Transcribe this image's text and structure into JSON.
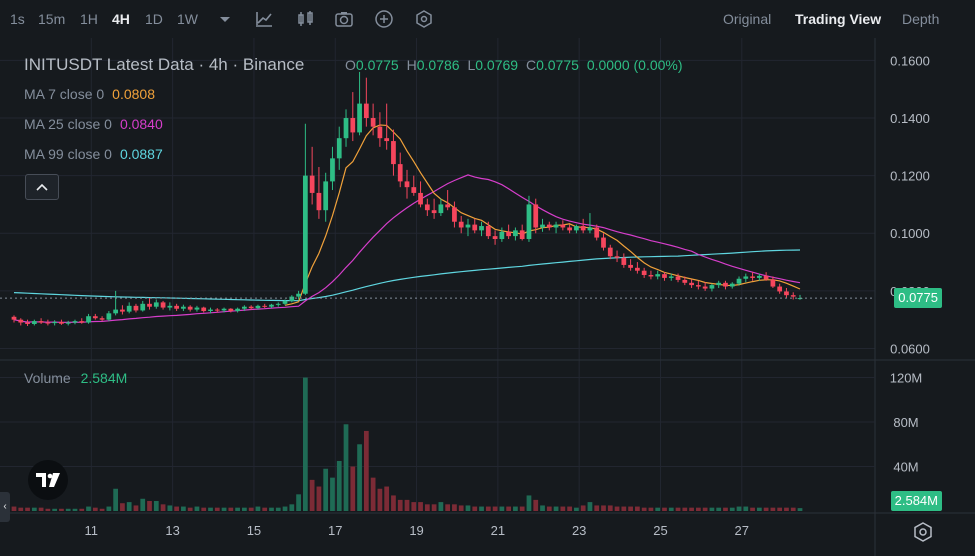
{
  "toolbar": {
    "timeframes": [
      "1s",
      "15m",
      "1H",
      "4H",
      "1D",
      "1W"
    ],
    "active_timeframe": "4H",
    "views": [
      "Original",
      "Trading View",
      "Depth"
    ],
    "active_view": "Trading View"
  },
  "legend": {
    "title": "INITUSDT Latest Data · 4h · Binance",
    "ohlc": [
      {
        "k": "O",
        "v": "0.0775"
      },
      {
        "k": "H",
        "v": "0.0786"
      },
      {
        "k": "L",
        "v": "0.0769"
      },
      {
        "k": "C",
        "v": "0.0775"
      }
    ],
    "change": "0.0000 (0.00%)",
    "ma": [
      {
        "label": "MA 7 close 0",
        "value": "0.0808",
        "color": "#f0a13a"
      },
      {
        "label": "MA 25 close 0",
        "value": "0.0840",
        "color": "#d63ecb"
      },
      {
        "label": "MA 99 close 0",
        "value": "0.0887",
        "color": "#5fd6e0"
      }
    ],
    "volume_label": "Volume",
    "volume_value": "2.584M"
  },
  "colors": {
    "up": "#2ebd85",
    "down": "#f6465d",
    "background": "#161a1e"
  },
  "chart_data": {
    "type": "candlestick",
    "symbol": "INITUSDT",
    "interval": "4h",
    "exchange": "Binance",
    "x_ticks": [
      "11",
      "13",
      "15",
      "17",
      "19",
      "21",
      "23",
      "25",
      "27"
    ],
    "price_ticks": [
      "0.1600",
      "0.1400",
      "0.1200",
      "0.1000",
      "0.0800",
      "0.0600"
    ],
    "price_range": [
      0.056,
      0.165
    ],
    "volume_ticks": [
      "120M",
      "80M",
      "40M"
    ],
    "volume_range": [
      0,
      125
    ],
    "last_price": "0.0775",
    "last_volume": "2.584M",
    "candles": [
      [
        0.071,
        0.0715,
        0.069,
        0.07,
        4
      ],
      [
        0.07,
        0.0705,
        0.068,
        0.069,
        3
      ],
      [
        0.069,
        0.07,
        0.0678,
        0.0685,
        3
      ],
      [
        0.0685,
        0.07,
        0.068,
        0.0695,
        3
      ],
      [
        0.0695,
        0.0705,
        0.0685,
        0.069,
        3
      ],
      [
        0.069,
        0.07,
        0.068,
        0.0688,
        2
      ],
      [
        0.0688,
        0.0698,
        0.068,
        0.0692,
        2
      ],
      [
        0.0692,
        0.07,
        0.0682,
        0.0686,
        2
      ],
      [
        0.0686,
        0.0696,
        0.068,
        0.069,
        2
      ],
      [
        0.069,
        0.07,
        0.0684,
        0.0695,
        2
      ],
      [
        0.0695,
        0.0705,
        0.0686,
        0.069,
        2
      ],
      [
        0.069,
        0.072,
        0.0686,
        0.0712,
        4
      ],
      [
        0.0712,
        0.072,
        0.07,
        0.0705,
        3
      ],
      [
        0.0705,
        0.0712,
        0.0695,
        0.07,
        2
      ],
      [
        0.07,
        0.073,
        0.0695,
        0.0722,
        4
      ],
      [
        0.0722,
        0.08,
        0.0715,
        0.0735,
        20
      ],
      [
        0.0735,
        0.075,
        0.0718,
        0.0728,
        7
      ],
      [
        0.0728,
        0.076,
        0.0722,
        0.0748,
        8
      ],
      [
        0.0748,
        0.0755,
        0.0725,
        0.0732,
        5
      ],
      [
        0.0732,
        0.0765,
        0.0728,
        0.0755,
        11
      ],
      [
        0.0755,
        0.0775,
        0.0735,
        0.0745,
        9
      ],
      [
        0.0745,
        0.077,
        0.0738,
        0.076,
        9
      ],
      [
        0.076,
        0.0765,
        0.0735,
        0.0742,
        6
      ],
      [
        0.0742,
        0.076,
        0.0732,
        0.0748,
        5
      ],
      [
        0.0748,
        0.0755,
        0.073,
        0.0738,
        4
      ],
      [
        0.0738,
        0.0752,
        0.073,
        0.0745,
        4
      ],
      [
        0.0745,
        0.075,
        0.0728,
        0.0735,
        3
      ],
      [
        0.0735,
        0.0748,
        0.0728,
        0.0742,
        4
      ],
      [
        0.0742,
        0.0745,
        0.0725,
        0.073,
        3
      ],
      [
        0.073,
        0.0742,
        0.0722,
        0.0735,
        3
      ],
      [
        0.0735,
        0.074,
        0.0725,
        0.0732,
        3
      ],
      [
        0.0732,
        0.0742,
        0.0725,
        0.0738,
        3
      ],
      [
        0.0738,
        0.074,
        0.0725,
        0.073,
        3
      ],
      [
        0.073,
        0.0742,
        0.0725,
        0.0738,
        3
      ],
      [
        0.0738,
        0.075,
        0.073,
        0.0745,
        3
      ],
      [
        0.0745,
        0.075,
        0.0735,
        0.074,
        3
      ],
      [
        0.074,
        0.0752,
        0.0735,
        0.0748,
        4
      ],
      [
        0.0748,
        0.0755,
        0.074,
        0.0745,
        3
      ],
      [
        0.0745,
        0.0755,
        0.074,
        0.0752,
        3
      ],
      [
        0.0752,
        0.076,
        0.0745,
        0.0755,
        3
      ],
      [
        0.0755,
        0.077,
        0.075,
        0.0765,
        4
      ],
      [
        0.0765,
        0.0785,
        0.076,
        0.078,
        6
      ],
      [
        0.078,
        0.08,
        0.077,
        0.079,
        15
      ],
      [
        0.079,
        0.138,
        0.0785,
        0.12,
        120
      ],
      [
        0.12,
        0.13,
        0.11,
        0.114,
        28
      ],
      [
        0.114,
        0.123,
        0.105,
        0.108,
        22
      ],
      [
        0.108,
        0.121,
        0.104,
        0.118,
        38
      ],
      [
        0.118,
        0.13,
        0.115,
        0.126,
        30
      ],
      [
        0.126,
        0.137,
        0.122,
        0.133,
        45
      ],
      [
        0.133,
        0.143,
        0.13,
        0.14,
        78
      ],
      [
        0.14,
        0.149,
        0.132,
        0.135,
        40
      ],
      [
        0.135,
        0.156,
        0.134,
        0.145,
        60
      ],
      [
        0.145,
        0.154,
        0.137,
        0.14,
        72
      ],
      [
        0.14,
        0.145,
        0.134,
        0.137,
        30
      ],
      [
        0.137,
        0.142,
        0.13,
        0.133,
        20
      ],
      [
        0.133,
        0.145,
        0.129,
        0.132,
        22
      ],
      [
        0.132,
        0.136,
        0.12,
        0.124,
        14
      ],
      [
        0.124,
        0.128,
        0.116,
        0.118,
        10
      ],
      [
        0.118,
        0.122,
        0.112,
        0.116,
        10
      ],
      [
        0.116,
        0.12,
        0.113,
        0.114,
        8
      ],
      [
        0.114,
        0.118,
        0.109,
        0.11,
        8
      ],
      [
        0.11,
        0.112,
        0.106,
        0.108,
        6
      ],
      [
        0.108,
        0.112,
        0.105,
        0.107,
        6
      ],
      [
        0.107,
        0.112,
        0.106,
        0.11,
        8
      ],
      [
        0.11,
        0.115,
        0.108,
        0.109,
        6
      ],
      [
        0.109,
        0.111,
        0.102,
        0.104,
        6
      ],
      [
        0.104,
        0.106,
        0.1,
        0.102,
        5
      ],
      [
        0.102,
        0.105,
        0.099,
        0.103,
        5
      ],
      [
        0.103,
        0.105,
        0.1,
        0.101,
        4
      ],
      [
        0.101,
        0.104,
        0.099,
        0.1025,
        4
      ],
      [
        0.1025,
        0.104,
        0.098,
        0.099,
        4
      ],
      [
        0.099,
        0.101,
        0.096,
        0.098,
        4
      ],
      [
        0.098,
        0.102,
        0.097,
        0.1005,
        4
      ],
      [
        0.1005,
        0.103,
        0.098,
        0.099,
        4
      ],
      [
        0.099,
        0.102,
        0.0975,
        0.101,
        4
      ],
      [
        0.101,
        0.103,
        0.0975,
        0.098,
        4
      ],
      [
        0.098,
        0.113,
        0.097,
        0.11,
        14
      ],
      [
        0.11,
        0.112,
        0.1,
        0.102,
        10
      ],
      [
        0.102,
        0.105,
        0.1005,
        0.103,
        5
      ],
      [
        0.103,
        0.104,
        0.101,
        0.102,
        4
      ],
      [
        0.102,
        0.104,
        0.1,
        0.103,
        4
      ],
      [
        0.103,
        0.1045,
        0.101,
        0.102,
        4
      ],
      [
        0.102,
        0.103,
        0.1,
        0.101,
        4
      ],
      [
        0.101,
        0.103,
        0.1,
        0.1025,
        3
      ],
      [
        0.1025,
        0.105,
        0.1,
        0.101,
        5
      ],
      [
        0.101,
        0.107,
        0.1,
        0.102,
        8
      ],
      [
        0.102,
        0.103,
        0.0975,
        0.0985,
        5
      ],
      [
        0.0985,
        0.1,
        0.094,
        0.095,
        5
      ],
      [
        0.095,
        0.096,
        0.091,
        0.092,
        5
      ],
      [
        0.092,
        0.094,
        0.09,
        0.0915,
        4
      ],
      [
        0.0915,
        0.093,
        0.088,
        0.089,
        4
      ],
      [
        0.089,
        0.091,
        0.087,
        0.088,
        4
      ],
      [
        0.088,
        0.09,
        0.086,
        0.087,
        4
      ],
      [
        0.087,
        0.088,
        0.0845,
        0.0855,
        3
      ],
      [
        0.0855,
        0.087,
        0.084,
        0.085,
        3
      ],
      [
        0.085,
        0.087,
        0.084,
        0.0858,
        3
      ],
      [
        0.0858,
        0.0865,
        0.0835,
        0.0845,
        3
      ],
      [
        0.0845,
        0.086,
        0.0835,
        0.085,
        3
      ],
      [
        0.085,
        0.086,
        0.083,
        0.0838,
        3
      ],
      [
        0.0838,
        0.085,
        0.082,
        0.0828,
        3
      ],
      [
        0.0828,
        0.084,
        0.081,
        0.082,
        3
      ],
      [
        0.082,
        0.0835,
        0.0805,
        0.0815,
        3
      ],
      [
        0.0815,
        0.083,
        0.08,
        0.0808,
        3
      ],
      [
        0.0808,
        0.0825,
        0.0798,
        0.082,
        3
      ],
      [
        0.082,
        0.0835,
        0.081,
        0.0828,
        3
      ],
      [
        0.0828,
        0.0835,
        0.0805,
        0.0815,
        3
      ],
      [
        0.0815,
        0.083,
        0.0808,
        0.0825,
        3
      ],
      [
        0.0825,
        0.085,
        0.0818,
        0.0842,
        4
      ],
      [
        0.0842,
        0.086,
        0.083,
        0.085,
        4
      ],
      [
        0.085,
        0.0865,
        0.0835,
        0.0845,
        3
      ],
      [
        0.0845,
        0.086,
        0.0835,
        0.0852,
        3
      ],
      [
        0.0852,
        0.0865,
        0.0835,
        0.084,
        3
      ],
      [
        0.084,
        0.085,
        0.081,
        0.0815,
        3
      ],
      [
        0.0815,
        0.0825,
        0.079,
        0.0798,
        3
      ],
      [
        0.0798,
        0.081,
        0.0775,
        0.0785,
        3
      ],
      [
        0.0785,
        0.0795,
        0.077,
        0.078,
        3
      ],
      [
        0.0775,
        0.0786,
        0.0769,
        0.0775,
        2.584
      ]
    ]
  }
}
